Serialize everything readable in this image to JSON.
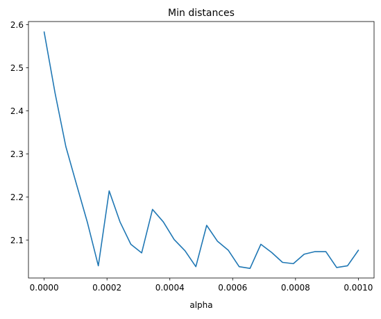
{
  "chart_data": {
    "type": "line",
    "title": "Min distances",
    "xlabel": "alpha",
    "ylabel": "",
    "xlim": [
      -5e-05,
      0.00105
    ],
    "ylim": [
      2.0117,
      2.6074
    ],
    "x_ticks": [
      {
        "value": 0.0,
        "label": "0.0000"
      },
      {
        "value": 0.0002,
        "label": "0.0002"
      },
      {
        "value": 0.0004,
        "label": "0.0004"
      },
      {
        "value": 0.0006,
        "label": "0.0006"
      },
      {
        "value": 0.0008,
        "label": "0.0008"
      },
      {
        "value": 0.001,
        "label": "0.0010"
      }
    ],
    "y_ticks": [
      {
        "value": 2.1,
        "label": "2.1"
      },
      {
        "value": 2.2,
        "label": "2.2"
      },
      {
        "value": 2.3,
        "label": "2.3"
      },
      {
        "value": 2.4,
        "label": "2.4"
      },
      {
        "value": 2.5,
        "label": "2.5"
      },
      {
        "value": 2.6,
        "label": "2.6"
      }
    ],
    "grid": false,
    "legend": "none",
    "series": [
      {
        "color": "#1f77b4",
        "x": [
          0.0,
          3.45e-05,
          6.9e-05,
          0.0001034,
          0.0001379,
          0.0001724,
          0.0002069,
          0.0002414,
          0.0002759,
          0.0003103,
          0.0003448,
          0.0003793,
          0.0004138,
          0.0004483,
          0.0004828,
          0.0005172,
          0.0005517,
          0.0005862,
          0.0006207,
          0.0006552,
          0.0006897,
          0.0007241,
          0.0007586,
          0.0007931,
          0.0008276,
          0.0008621,
          0.0008966,
          0.000931,
          0.0009655,
          0.001
        ],
        "y": [
          2.583,
          2.442,
          2.317,
          2.228,
          2.14,
          2.04,
          2.214,
          2.142,
          2.09,
          2.07,
          2.171,
          2.142,
          2.101,
          2.075,
          2.038,
          2.134,
          2.097,
          2.076,
          2.038,
          2.034,
          2.09,
          2.071,
          2.048,
          2.045,
          2.067,
          2.073,
          2.073,
          2.036,
          2.04,
          2.076
        ]
      }
    ]
  }
}
